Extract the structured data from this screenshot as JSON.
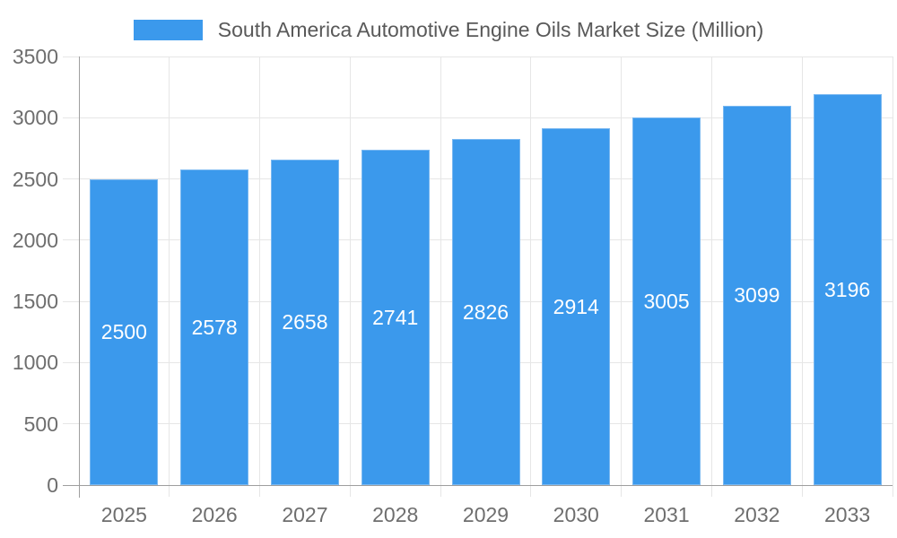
{
  "chart_data": {
    "type": "bar",
    "title": "South America Automotive Engine Oils Market Size (Million)",
    "categories": [
      "2025",
      "2026",
      "2027",
      "2028",
      "2029",
      "2030",
      "2031",
      "2032",
      "2033"
    ],
    "values": [
      2500,
      2578,
      2658,
      2741,
      2826,
      2914,
      3005,
      3099,
      3196
    ],
    "xlabel": "",
    "ylabel": "",
    "ylim": [
      0,
      3500
    ],
    "ytick_step": 500,
    "ytick_labels": [
      "0",
      "500",
      "1000",
      "1500",
      "2000",
      "2500",
      "3000",
      "3500"
    ],
    "grid": true,
    "legend_position": "top",
    "bar_value_labels_shown": true,
    "colors": {
      "bar_fill": "#3b99ec",
      "bar_border": "#79b8f1",
      "bar_label_text": "#ffffff",
      "grid_line": "#e6e6e6",
      "axis_line": "#9e9e9e",
      "tick_text": "#6e6e6e",
      "title_text": "#595959",
      "background": "#ffffff"
    }
  }
}
